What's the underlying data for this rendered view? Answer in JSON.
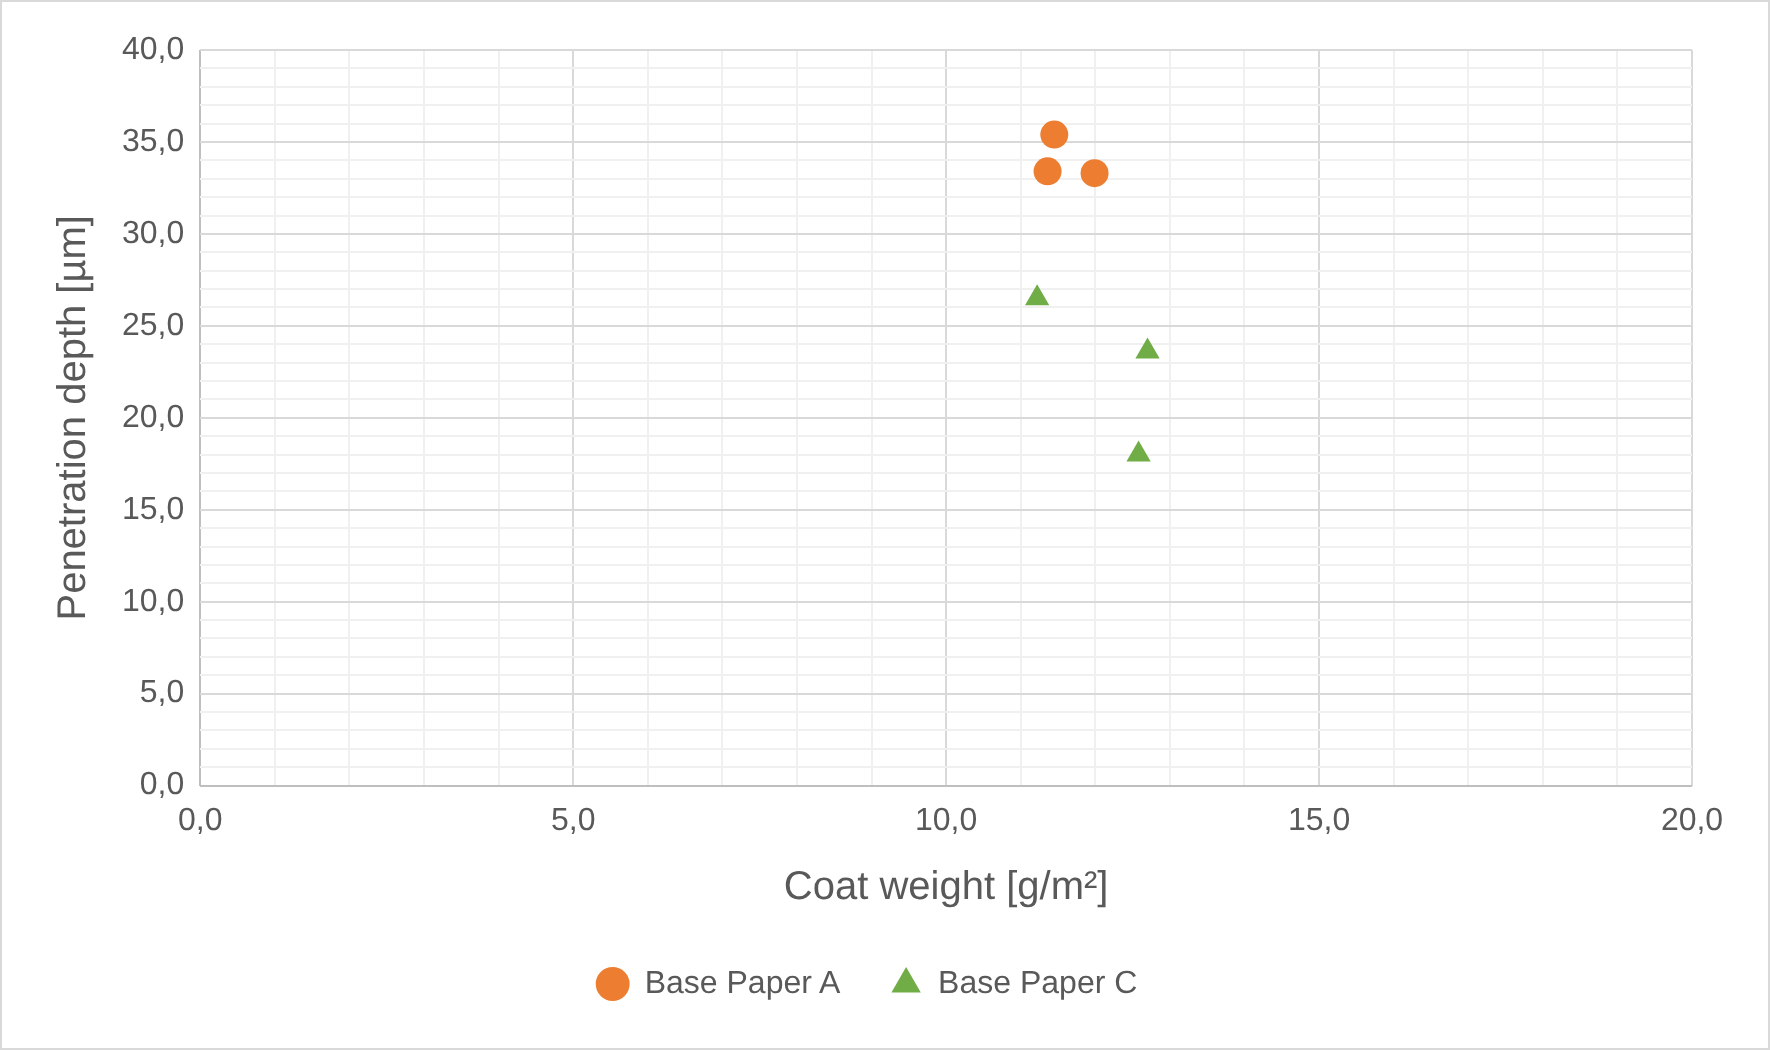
{
  "chart_data": {
    "type": "scatter",
    "xlabel": "Coat weight [g/m²]",
    "ylabel": "Penetration depth [µm]",
    "series": [
      {
        "name": "Base Paper A",
        "color": "#ed7d31",
        "marker": "circle",
        "x": [
          11.45,
          11.36,
          11.99
        ],
        "values": [
          35.4,
          33.4,
          33.3
        ]
      },
      {
        "name": "Base Paper C",
        "color": "#70ad47",
        "marker": "triangle",
        "x": [
          11.22,
          12.7,
          12.58
        ],
        "values": [
          26.5,
          23.6,
          18.0
        ]
      }
    ],
    "xlim": [
      0,
      20
    ],
    "xticks": [
      {
        "value": 0,
        "label": "0,0"
      },
      {
        "value": 1,
        "label": null
      },
      {
        "value": 2,
        "label": null
      },
      {
        "value": 3,
        "label": null
      },
      {
        "value": 4,
        "label": null
      },
      {
        "value": 5,
        "label": "5,0"
      },
      {
        "value": 6,
        "label": null
      },
      {
        "value": 7,
        "label": null
      },
      {
        "value": 8,
        "label": null
      },
      {
        "value": 9,
        "label": null
      },
      {
        "value": 10,
        "label": "10,0"
      },
      {
        "value": 11,
        "label": null
      },
      {
        "value": 12,
        "label": null
      },
      {
        "value": 13,
        "label": null
      },
      {
        "value": 14,
        "label": null
      },
      {
        "value": 15,
        "label": "15,0"
      },
      {
        "value": 16,
        "label": null
      },
      {
        "value": 17,
        "label": null
      },
      {
        "value": 18,
        "label": null
      },
      {
        "value": 19,
        "label": null
      },
      {
        "value": 20,
        "label": "20,0"
      }
    ],
    "ylim": [
      0,
      40
    ],
    "yticks": [
      {
        "value": 0,
        "label": "0,0"
      },
      {
        "value": 1,
        "label": null
      },
      {
        "value": 2,
        "label": null
      },
      {
        "value": 3,
        "label": null
      },
      {
        "value": 4,
        "label": null
      },
      {
        "value": 5,
        "label": "5,0"
      },
      {
        "value": 6,
        "label": null
      },
      {
        "value": 7,
        "label": null
      },
      {
        "value": 8,
        "label": null
      },
      {
        "value": 9,
        "label": null
      },
      {
        "value": 10,
        "label": "10,0"
      },
      {
        "value": 11,
        "label": null
      },
      {
        "value": 12,
        "label": null
      },
      {
        "value": 13,
        "label": null
      },
      {
        "value": 14,
        "label": null
      },
      {
        "value": 15,
        "label": "15,0"
      },
      {
        "value": 16,
        "label": null
      },
      {
        "value": 17,
        "label": null
      },
      {
        "value": 18,
        "label": null
      },
      {
        "value": 19,
        "label": null
      },
      {
        "value": 20,
        "label": "20,0"
      },
      {
        "value": 21,
        "label": null
      },
      {
        "value": 22,
        "label": null
      },
      {
        "value": 23,
        "label": null
      },
      {
        "value": 24,
        "label": null
      },
      {
        "value": 25,
        "label": "25,0"
      },
      {
        "value": 26,
        "label": null
      },
      {
        "value": 27,
        "label": null
      },
      {
        "value": 28,
        "label": null
      },
      {
        "value": 29,
        "label": null
      },
      {
        "value": 30,
        "label": "30,0"
      },
      {
        "value": 31,
        "label": null
      },
      {
        "value": 32,
        "label": null
      },
      {
        "value": 33,
        "label": null
      },
      {
        "value": 34,
        "label": null
      },
      {
        "value": 35,
        "label": "35,0"
      },
      {
        "value": 36,
        "label": null
      },
      {
        "value": 37,
        "label": null
      },
      {
        "value": 38,
        "label": null
      },
      {
        "value": 39,
        "label": null
      },
      {
        "value": 40,
        "label": "40,0"
      }
    ],
    "grid": true,
    "legend": "bottom"
  }
}
